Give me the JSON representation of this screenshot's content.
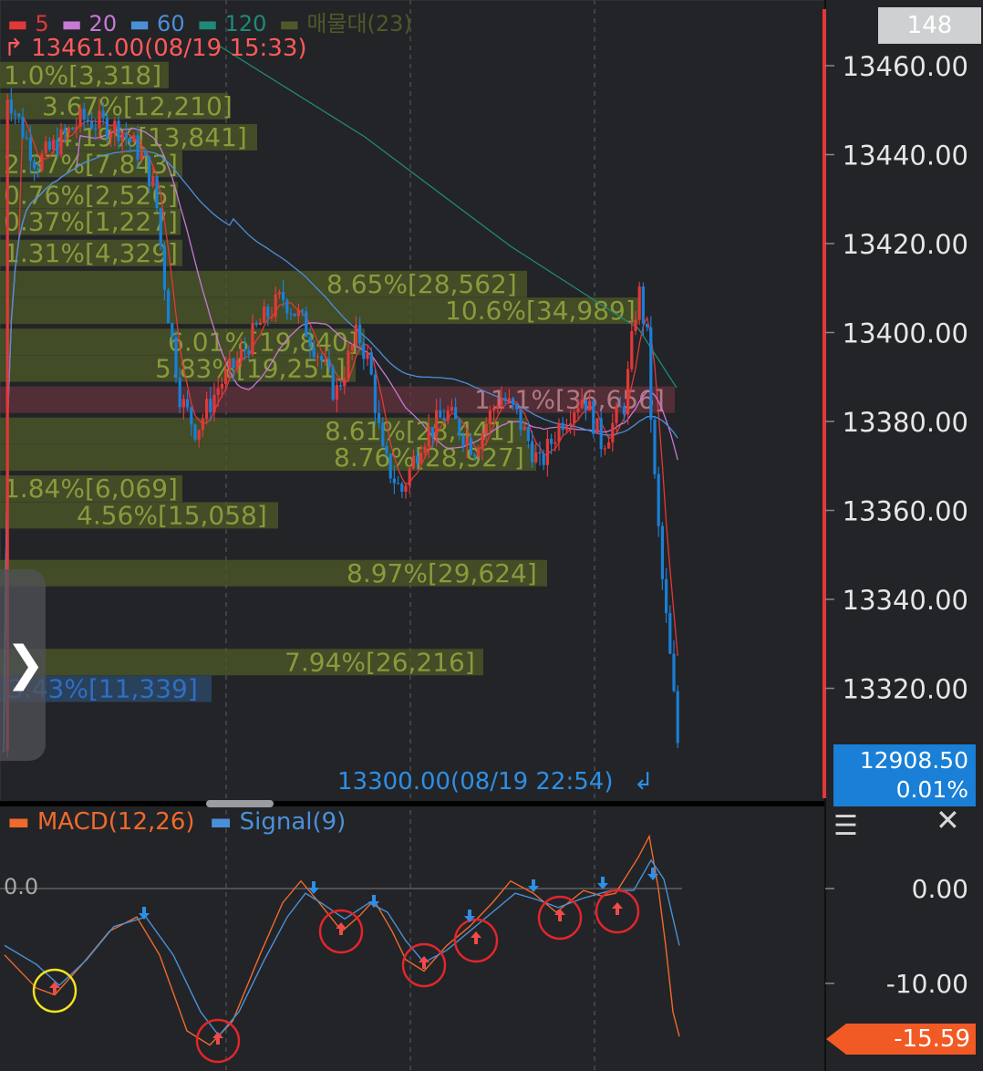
{
  "legend": [
    {
      "label": "5",
      "color": "#e23838"
    },
    {
      "label": "20",
      "color": "#c77ad6"
    },
    {
      "label": "60",
      "color": "#4a90d9"
    },
    {
      "label": "120",
      "color": "#1f8a7a"
    },
    {
      "label": "매물대(23)",
      "color": "#4d5a28"
    }
  ],
  "top_button": "148",
  "high_marker": "13461.00(08/19 15:33)",
  "low_marker": "13300.00(08/19 22:54)",
  "current_price": "12908.50",
  "current_change": "0.01%",
  "price_axis_ticks": [
    "13460.00",
    "13440.00",
    "13420.00",
    "13400.00",
    "13380.00",
    "13360.00",
    "13340.00",
    "13320.00"
  ],
  "volume_profile": [
    {
      "label": "1.0%[3,318]",
      "price": 13458
    },
    {
      "label": "3.67%[12,210]",
      "price": 13451
    },
    {
      "label": "4.19%[13,841]",
      "price": 13444
    },
    {
      "label": "2.37%[7,843]",
      "price": 13438
    },
    {
      "label": "0.76%[2,526]",
      "price": 13431
    },
    {
      "label": "0.37%[1,227]",
      "price": 13425
    },
    {
      "label": "1.31%[4,329]",
      "price": 13418
    },
    {
      "label": "8.65%[28,562]",
      "price": 13411
    },
    {
      "label": "10.6%[34,989]",
      "price": 13405
    },
    {
      "label": "6.01%[19,840]",
      "price": 13398
    },
    {
      "label": "5.83%[19,251]",
      "price": 13392
    },
    {
      "label": "11.1%[36,656]",
      "price": 13385,
      "highlight": true
    },
    {
      "label": "8.61%[28,441]",
      "price": 13378
    },
    {
      "label": "8.76%[28,927]",
      "price": 13372
    },
    {
      "label": "1.84%[6,069]",
      "price": 13365
    },
    {
      "label": "4.56%[15,058]",
      "price": 13359
    },
    {
      "label": "8.97%[29,624]",
      "price": 13346
    },
    {
      "label": "7.94%[26,216]",
      "price": 13326
    },
    {
      "label": "3.43%[11,339]",
      "price": 13320,
      "current": true
    }
  ],
  "macd_legend": {
    "macd": "MACD(12,26)",
    "signal": "Signal(9)"
  },
  "macd_axis_ticks": [
    "0.00",
    "-10.00"
  ],
  "macd_zero_label": "0.0",
  "macd_current": "-15.59",
  "colors": {
    "up": "#e23838",
    "down": "#1a7fd6",
    "ma5": "#e23838",
    "ma20": "#c77ad6",
    "ma60": "#4a90d9",
    "ma120": "#1f8a7a",
    "profile": "#4d5a28",
    "profile_hl": "#6b3440",
    "macd": "#ef6a2c",
    "signal": "#4a90d9",
    "cursor": "#e23838"
  },
  "chart_data": [
    {
      "type": "candlestick",
      "title": "",
      "ylim": [
        13300,
        13470
      ],
      "series": [
        {
          "name": "5"
        },
        {
          "name": "20"
        },
        {
          "name": "60"
        },
        {
          "name": "120"
        }
      ],
      "high": 13461.0,
      "low": 13300.0,
      "last": 12908.5
    },
    {
      "type": "line",
      "series": [
        {
          "name": "MACD(12,26)"
        },
        {
          "name": "Signal(9)"
        }
      ],
      "ylim": [
        -18,
        3
      ],
      "last": -15.59
    }
  ]
}
